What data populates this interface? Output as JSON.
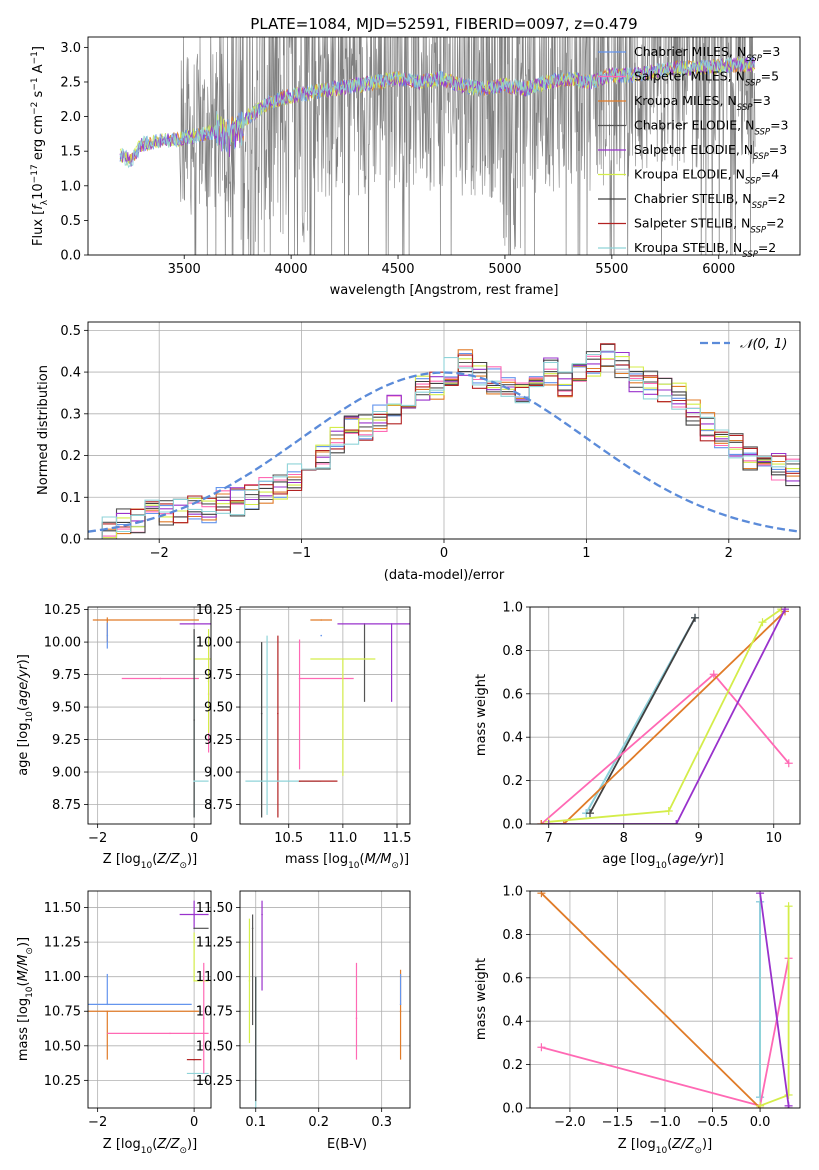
{
  "figure": {
    "title": "PLATE=1084, MJD=52591, FIBERID=0097, z=0.479"
  },
  "colors": {
    "Chabrier MILES": "#6495ED",
    "Salpeter MILES": "#FF69B4",
    "Kroupa MILES": "#E07B28",
    "Chabrier ELODIE": "#555555",
    "Salpeter ELODIE": "#9932CC",
    "Kroupa ELODIE": "#D4ED4A",
    "Chabrier STELIB": "#404040",
    "Salpeter STELIB": "#B22222",
    "Kroupa STELIB": "#8FD3D8",
    "data": "#808080",
    "gauss": "#5B8BD9"
  },
  "chart_data": [
    {
      "id": "spectrum",
      "type": "line",
      "title": "PLATE=1084, MJD=52591, FIBERID=0097, z=0.479",
      "xlabel": "wavelength [Angstrom, rest frame]",
      "ylabel": "Flux [f_λ 10^-17 erg cm^-2 s^-1 A^-1]",
      "xlim": [
        3050,
        6380
      ],
      "ylim": [
        0,
        3.15
      ],
      "xticks": [
        3500,
        4000,
        4500,
        5000,
        5500,
        6000
      ],
      "yticks": [
        0.0,
        0.5,
        1.0,
        1.5,
        2.0,
        2.5,
        3.0
      ],
      "grid": false,
      "legend_position": "top-right",
      "legend": [
        {
          "label": "Chabrier MILES, N",
          "sub": "SSP",
          "suffix": "=3",
          "key": "Chabrier MILES"
        },
        {
          "label": "Salpeter MILES, N",
          "sub": "SSP",
          "suffix": "=5",
          "key": "Salpeter MILES"
        },
        {
          "label": "Kroupa MILES, N",
          "sub": "SSP",
          "suffix": "=3",
          "key": "Kroupa MILES"
        },
        {
          "label": "Chabrier ELODIE, N",
          "sub": "SSP",
          "suffix": "=3",
          "key": "Chabrier ELODIE"
        },
        {
          "label": "Salpeter ELODIE, N",
          "sub": "SSP",
          "suffix": "=3",
          "key": "Salpeter ELODIE"
        },
        {
          "label": "Kroupa ELODIE, N",
          "sub": "SSP",
          "suffix": "=4",
          "key": "Kroupa ELODIE"
        },
        {
          "label": "Chabrier STELIB, N",
          "sub": "SSP",
          "suffix": "=2",
          "key": "Chabrier STELIB"
        },
        {
          "label": "Salpeter STELIB, N",
          "sub": "SSP",
          "suffix": "=2",
          "key": "Salpeter STELIB"
        },
        {
          "label": "Kroupa STELIB, N",
          "sub": "SSP",
          "suffix": "=2",
          "key": "Kroupa STELIB"
        }
      ],
      "continuum": {
        "x": [
          3200,
          3250,
          3300,
          3400,
          3480,
          3550,
          3650,
          3720,
          3800,
          3900,
          4000,
          4100,
          4200,
          4300,
          4400,
          4500,
          4600,
          4700,
          4800,
          4900,
          5000,
          5100,
          5200,
          5300,
          5400,
          5500,
          5600,
          5700,
          5800,
          5900,
          6000,
          6100,
          6170
        ],
        "y": [
          1.45,
          1.35,
          1.6,
          1.65,
          1.68,
          1.72,
          1.78,
          1.7,
          2.0,
          2.2,
          2.3,
          2.35,
          2.4,
          2.45,
          2.5,
          2.55,
          2.5,
          2.55,
          2.45,
          2.4,
          2.45,
          2.4,
          2.5,
          2.55,
          2.5,
          2.6,
          2.6,
          2.65,
          2.7,
          2.7,
          2.72,
          2.75,
          2.75
        ]
      }
    },
    {
      "id": "residuals",
      "type": "histogram",
      "xlabel": "(data-model)/error",
      "ylabel": "Normed distribution",
      "xlim": [
        -2.5,
        2.5
      ],
      "ylim": [
        0,
        0.52
      ],
      "xticks": [
        -2,
        -1,
        0,
        1,
        2
      ],
      "yticks": [
        0.0,
        0.1,
        0.2,
        0.3,
        0.4,
        0.5
      ],
      "grid": true,
      "legend_position": "top-right",
      "gauss_label": "𝒩(0, 1)",
      "bin_edges_start": -2.5,
      "bin_width": 0.1,
      "base_values": [
        0.02,
        0.02,
        0.04,
        0.05,
        0.06,
        0.06,
        0.07,
        0.08,
        0.07,
        0.09,
        0.09,
        0.1,
        0.12,
        0.13,
        0.15,
        0.17,
        0.2,
        0.24,
        0.26,
        0.27,
        0.29,
        0.31,
        0.33,
        0.36,
        0.37,
        0.4,
        0.42,
        0.39,
        0.38,
        0.37,
        0.36,
        0.38,
        0.4,
        0.37,
        0.39,
        0.42,
        0.44,
        0.42,
        0.38,
        0.37,
        0.36,
        0.34,
        0.3,
        0.27,
        0.24,
        0.22,
        0.2,
        0.18,
        0.17,
        0.16,
        0.14,
        0.12,
        0.1,
        0.08,
        0.07,
        0.06,
        0.05,
        0.04,
        0.04,
        0.04,
        0.04,
        0.03,
        0.03,
        0.05,
        0.05,
        0.05,
        0.05
      ]
    },
    {
      "id": "age_vs_Z",
      "type": "errorbar",
      "xlabel": "Z [log10(Z/Z⊙)]",
      "ylabel": "age  [log10(age/yr)]",
      "xlim": [
        -2.2,
        0.35
      ],
      "ylim": [
        8.6,
        10.27
      ],
      "xticks": [
        -2,
        0
      ],
      "yticks": [
        8.75,
        9.0,
        9.25,
        9.5,
        9.75,
        10.0,
        10.25
      ],
      "grid": true,
      "points": [
        {
          "key": "Kroupa MILES",
          "x": -1.8,
          "xerr": [
            0.3,
            1.9
          ],
          "y": 10.17,
          "yerr": [
            0.17,
            0.02
          ]
        },
        {
          "key": "Chabrier MILES",
          "x": -1.8,
          "xerr": [
            0.0,
            0.0
          ],
          "y": 10.05,
          "yerr": [
            0.1,
            0.1
          ]
        },
        {
          "key": "Salpeter MILES",
          "x": -0.7,
          "xerr": [
            0.8,
            0.8
          ],
          "y": 9.72,
          "yerr": [
            0.0,
            0.0
          ]
        },
        {
          "key": "Salpeter ELODIE",
          "x": 0.0,
          "xerr": [
            0.3,
            0.6
          ],
          "y": 10.14,
          "yerr": [
            0.0,
            0.0
          ]
        },
        {
          "key": "Kroupa ELODIE",
          "x": 0.0,
          "xerr": [
            0.0,
            0.7
          ],
          "y": 9.87,
          "yerr": [
            0.0,
            0.0
          ]
        },
        {
          "key": "Kroupa STELIB",
          "x": 0.0,
          "xerr": [
            0.0,
            0.0
          ],
          "y": 9.5,
          "yerr": [
            0.85,
            0.55
          ]
        },
        {
          "key": "Chabrier STELIB",
          "x": 0.0,
          "xerr": [
            0.0,
            0.0
          ],
          "y": 9.4,
          "yerr": [
            0.75,
            0.7
          ]
        },
        {
          "key": "Kroupa STELIB",
          "x": 0.0,
          "xerr": [
            0.0,
            0.3
          ],
          "y": 8.93,
          "yerr": [
            0.0,
            0.0
          ]
        },
        {
          "key": "Salpeter MILES",
          "x": 0.3,
          "xerr": [
            0.0,
            0.0
          ],
          "y": 9.6,
          "yerr": [
            0.45,
            0.45
          ]
        },
        {
          "key": "Kroupa ELODIE",
          "x": 0.3,
          "xerr": [
            0.0,
            0.0
          ],
          "y": 9.7,
          "yerr": [
            0.4,
            0.4
          ]
        }
      ]
    },
    {
      "id": "age_vs_mass",
      "type": "errorbar",
      "xlabel": "mass [log10(M/M⊙)]",
      "ylabel": "",
      "xlim": [
        10.05,
        11.62
      ],
      "ylim": [
        8.6,
        10.27
      ],
      "xticks": [
        10.5,
        11.0,
        11.5
      ],
      "yticks": [
        8.75,
        9.0,
        9.25,
        9.5,
        9.75,
        10.0,
        10.25
      ],
      "grid": true,
      "points": [
        {
          "key": "Kroupa MILES",
          "x": 10.8,
          "xerr": [
            0.1,
            0.1
          ],
          "y": 10.17,
          "yerr": [
            0.0,
            0.0
          ]
        },
        {
          "key": "Chabrier ELODIE",
          "x": 11.2,
          "xerr": [
            0.0,
            0.0
          ],
          "y": 10.14,
          "yerr": [
            0.6,
            0.0
          ]
        },
        {
          "key": "Salpeter ELODIE",
          "x": 11.45,
          "xerr": [
            0.5,
            0.2
          ],
          "y": 10.14,
          "yerr": [
            0.6,
            0.0
          ]
        },
        {
          "key": "Kroupa STELIB",
          "x": 10.3,
          "xerr": [
            0.0,
            0.0
          ],
          "y": 9.5,
          "yerr": [
            0.83,
            0.55
          ]
        },
        {
          "key": "Chabrier STELIB",
          "x": 10.25,
          "xerr": [
            0.0,
            0.0
          ],
          "y": 9.45,
          "yerr": [
            0.8,
            0.55
          ]
        },
        {
          "key": "Salpeter STELIB",
          "x": 10.4,
          "xerr": [
            0.0,
            0.0
          ],
          "y": 9.45,
          "yerr": [
            0.8,
            0.6
          ]
        },
        {
          "key": "Kroupa STELIB",
          "x": 10.5,
          "xerr": [
            0.4,
            0.3
          ],
          "y": 8.93,
          "yerr": [
            0.0,
            0.0
          ]
        },
        {
          "key": "Salpeter STELIB",
          "x": 10.6,
          "xerr": [
            0.0,
            0.35
          ],
          "y": 8.93,
          "yerr": [
            0.0,
            0.0
          ]
        },
        {
          "key": "Salpeter MILES",
          "x": 10.6,
          "xerr": [
            0.0,
            0.5
          ],
          "y": 9.72,
          "yerr": [
            0.7,
            0.3
          ]
        },
        {
          "key": "Kroupa ELODIE",
          "x": 11.0,
          "xerr": [
            0.3,
            0.3
          ],
          "y": 9.87,
          "yerr": [
            0.9,
            0.0
          ]
        },
        {
          "key": "Chabrier MILES",
          "x": 10.8,
          "xerr": [
            0.0,
            0.0
          ],
          "y": 10.05,
          "yerr": [
            0.0,
            0.0
          ]
        }
      ]
    },
    {
      "id": "massweight_vs_age",
      "type": "line",
      "xlabel": "age  [log10(age/yr)]",
      "ylabel": "mass weight",
      "xlim": [
        6.75,
        10.35
      ],
      "ylim": [
        0,
        1.0
      ],
      "xticks": [
        7,
        8,
        9,
        10
      ],
      "yticks": [
        0.0,
        0.2,
        0.4,
        0.6,
        0.8,
        1.0
      ],
      "grid": true,
      "series": [
        {
          "key": "Chabrier MILES",
          "x": [
            7.5,
            8.95
          ],
          "y": [
            0.05,
            0.95
          ]
        },
        {
          "key": "Kroupa STELIB",
          "x": [
            7.5,
            8.95
          ],
          "y": [
            0.05,
            0.95
          ]
        },
        {
          "key": "Chabrier STELIB",
          "x": [
            7.55,
            8.95
          ],
          "y": [
            0.05,
            0.95
          ]
        },
        {
          "key": "Salpeter MILES",
          "x": [
            6.9,
            9.2,
            10.2
          ],
          "y": [
            0.0,
            0.69,
            0.28
          ]
        },
        {
          "key": "Kroupa MILES",
          "x": [
            6.9,
            7.2,
            10.15
          ],
          "y": [
            0.0,
            0.0,
            0.98
          ]
        },
        {
          "key": "Kroupa ELODIE",
          "x": [
            7.0,
            8.6,
            9.85,
            10.1
          ],
          "y": [
            0.01,
            0.06,
            0.93,
            0.99
          ]
        },
        {
          "key": "Salpeter ELODIE",
          "x": [
            7.0,
            8.7,
            10.15
          ],
          "y": [
            0.0,
            0.0,
            0.99
          ]
        }
      ]
    },
    {
      "id": "mass_vs_Z",
      "type": "errorbar",
      "xlabel": "Z [log10(Z/Z⊙)]",
      "ylabel": "mass [log10(M/M⊙)]",
      "xlim": [
        -2.2,
        0.35
      ],
      "ylim": [
        10.05,
        11.62
      ],
      "xticks": [
        -2,
        0
      ],
      "yticks": [
        10.25,
        10.5,
        10.75,
        11.0,
        11.25,
        11.5
      ],
      "grid": true,
      "points": [
        {
          "key": "Chabrier MILES",
          "x": -1.8,
          "xerr": [
            0.4,
            1.75
          ],
          "y": 10.8,
          "yerr": [
            0.0,
            0.22
          ]
        },
        {
          "key": "Kroupa MILES",
          "x": -1.8,
          "xerr": [
            0.4,
            1.9
          ],
          "y": 10.75,
          "yerr": [
            0.35,
            0.0
          ]
        },
        {
          "key": "Salpeter MILES",
          "x": -0.5,
          "xerr": [
            1.3,
            0.8
          ],
          "y": 10.59,
          "yerr": [
            0.0,
            0.0
          ]
        },
        {
          "key": "Salpeter ELODIE",
          "x": 0.0,
          "xerr": [
            0.3,
            0.3
          ],
          "y": 11.45,
          "yerr": [
            0.1,
            0.1
          ]
        },
        {
          "key": "Chabrier ELODIE",
          "x": 0.0,
          "xerr": [
            0.0,
            0.3
          ],
          "y": 11.35,
          "yerr": [
            0.0,
            0.0
          ]
        },
        {
          "key": "Kroupa ELODIE",
          "x": 0.0,
          "xerr": [
            0.0,
            0.3
          ],
          "y": 10.97,
          "yerr": [
            0.0,
            0.35
          ]
        },
        {
          "key": "Salpeter STELIB",
          "x": 0.0,
          "xerr": [
            0.15,
            0.15
          ],
          "y": 10.4,
          "yerr": [
            0.0,
            0.0
          ]
        },
        {
          "key": "Kroupa STELIB",
          "x": 0.0,
          "xerr": [
            0.15,
            0.3
          ],
          "y": 10.3,
          "yerr": [
            0.0,
            0.0
          ]
        },
        {
          "key": "Chabrier STELIB",
          "x": 0.0,
          "xerr": [
            0.0,
            0.3
          ],
          "y": 10.25,
          "yerr": [
            0.0,
            0.0
          ]
        },
        {
          "key": "Salpeter MILES",
          "x": 0.2,
          "xerr": [
            0.0,
            0.0
          ],
          "y": 10.7,
          "yerr": [
            0.4,
            0.4
          ]
        }
      ]
    },
    {
      "id": "mass_vs_ebv",
      "type": "errorbar",
      "xlabel": "E(B-V)",
      "ylabel": "",
      "xlim": [
        0.075,
        0.345
      ],
      "ylim": [
        10.05,
        11.62
      ],
      "xticks": [
        0.1,
        0.2,
        0.3
      ],
      "yticks": [
        10.25,
        10.5,
        10.75,
        11.0,
        11.25,
        11.5
      ],
      "grid": true,
      "points": [
        {
          "key": "Kroupa ELODIE",
          "x": 0.09,
          "yerr": [
            0.45,
            0.45
          ],
          "y": 10.97
        },
        {
          "key": "Chabrier ELODIE",
          "x": 0.095,
          "yerr": [
            0.7,
            0.1
          ],
          "y": 11.35
        },
        {
          "key": "Salpeter ELODIE",
          "x": 0.11,
          "yerr": [
            0.55,
            0.1
          ],
          "y": 11.45
        },
        {
          "key": "Kroupa STELIB",
          "x": 0.1,
          "yerr": [
            0.25,
            0.7
          ],
          "y": 10.3
        },
        {
          "key": "Chabrier STELIB",
          "x": 0.1,
          "yerr": [
            0.15,
            0.75
          ],
          "y": 10.25
        },
        {
          "key": "Salpeter MILES",
          "x": 0.26,
          "yerr": [
            0.3,
            0.4
          ],
          "y": 10.7
        },
        {
          "key": "Kroupa MILES",
          "x": 0.33,
          "yerr": [
            0.35,
            0.3
          ],
          "y": 10.75
        },
        {
          "key": "Chabrier MILES",
          "x": 0.33,
          "yerr": [
            0.0,
            0.22
          ],
          "y": 10.8
        }
      ]
    },
    {
      "id": "massweight_vs_Z",
      "type": "line",
      "xlabel": "Z [log10(Z/Z⊙)]",
      "ylabel": "mass weight",
      "xlim": [
        -2.42,
        0.42
      ],
      "ylim": [
        0,
        1.0
      ],
      "xticks": [
        -2.0,
        -1.5,
        -1.0,
        -0.5,
        0.0
      ],
      "yticks": [
        0.0,
        0.2,
        0.4,
        0.6,
        0.8,
        1.0
      ],
      "grid": true,
      "series": [
        {
          "key": "Chabrier MILES",
          "x": [
            0.0,
            0.0
          ],
          "y": [
            0.05,
            0.95
          ]
        },
        {
          "key": "Kroupa STELIB",
          "x": [
            0.0,
            0.0
          ],
          "y": [
            0.05,
            0.95
          ]
        },
        {
          "key": "Salpeter MILES",
          "x": [
            -2.3,
            0.0,
            0.3
          ],
          "y": [
            0.28,
            0.01,
            0.69
          ]
        },
        {
          "key": "Kroupa MILES",
          "x": [
            -2.3,
            0.0
          ],
          "y": [
            0.99,
            0.0
          ]
        },
        {
          "key": "Kroupa ELODIE",
          "x": [
            0.3,
            0.3,
            0.0
          ],
          "y": [
            0.93,
            0.06,
            0.01
          ]
        },
        {
          "key": "Salpeter ELODIE",
          "x": [
            0.0,
            0.3,
            0.3
          ],
          "y": [
            0.99,
            0.01,
            0.0
          ]
        }
      ]
    }
  ]
}
